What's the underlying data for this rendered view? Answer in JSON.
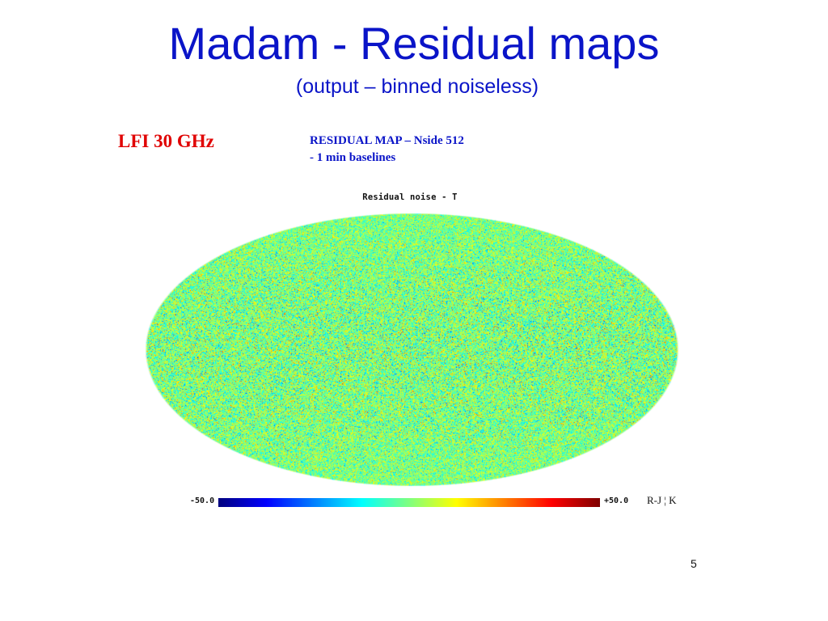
{
  "slide": {
    "title": "Madam - Residual maps",
    "subtitle": "(output – binned noiseless)",
    "instrument_label": "LFI 30 GHz",
    "caption_line1": "RESIDUAL MAP – Nside 512",
    "caption_line2": "- 1 min baselines",
    "page_number": "5"
  },
  "map": {
    "title": "Residual noise - T",
    "projection": "mollweide",
    "colormap": "jet",
    "min_label": "-50.0",
    "max_label": "+50.0",
    "unit": "R-J ¦ K",
    "colors": {
      "title": "#0a14c8",
      "instrument": "#e00000",
      "green_dominant": "#3ea878"
    }
  }
}
